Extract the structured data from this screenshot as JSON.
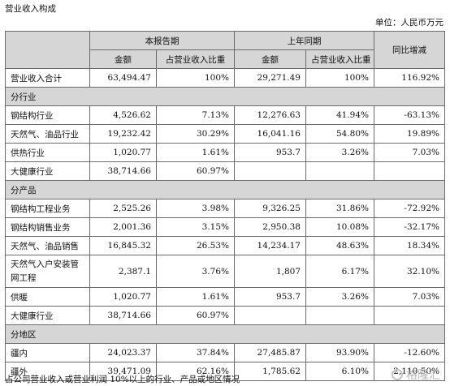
{
  "title": "营业收入构成",
  "unit": "单位：人民币万元",
  "headers": {
    "current_period": "本报告期",
    "prior_period": "上年同期",
    "yoy": "同比增减",
    "amount": "金额",
    "share": "占营业收入比重"
  },
  "total": {
    "label": "营业收入合计",
    "cur_amount": "63,494.47",
    "cur_share": "100%",
    "prev_amount": "29,271.49",
    "prev_share": "100%",
    "yoy": "116.92%"
  },
  "sections": [
    {
      "name": "分行业",
      "rows": [
        {
          "label": "钢结构行业",
          "cur_amount": "4,526.62",
          "cur_share": "7.13%",
          "prev_amount": "12,276.63",
          "prev_share": "41.94%",
          "yoy": "-63.13%"
        },
        {
          "label": "天然气、油品行业",
          "cur_amount": "19,232.42",
          "cur_share": "30.29%",
          "prev_amount": "16,041.16",
          "prev_share": "54.80%",
          "yoy": "19.89%"
        },
        {
          "label": "供热行业",
          "cur_amount": "1,020.77",
          "cur_share": "1.61%",
          "prev_amount": "953.7",
          "prev_share": "3.26%",
          "yoy": "7.03%"
        },
        {
          "label": "大健康行业",
          "cur_amount": "38,714.66",
          "cur_share": "60.97%",
          "prev_amount": "",
          "prev_share": "",
          "yoy": ""
        }
      ]
    },
    {
      "name": "分产品",
      "rows": [
        {
          "label": "钢结构工程业务",
          "cur_amount": "2,525.26",
          "cur_share": "3.98%",
          "prev_amount": "9,326.25",
          "prev_share": "31.86%",
          "yoy": "-72.92%"
        },
        {
          "label": "钢结构销售业务",
          "cur_amount": "2,001.36",
          "cur_share": "3.15%",
          "prev_amount": "2,950.38",
          "prev_share": "10.08%",
          "yoy": "-32.17%"
        },
        {
          "label": "天然气、油品销售",
          "cur_amount": "16,845.32",
          "cur_share": "26.53%",
          "prev_amount": "14,234.17",
          "prev_share": "48.63%",
          "yoy": "18.34%"
        },
        {
          "label": "天然气入户安装管网工程",
          "cur_amount": "2,387.1",
          "cur_share": "3.76%",
          "prev_amount": "1,807",
          "prev_share": "6.17%",
          "yoy": "32.10%"
        },
        {
          "label": "供暖",
          "cur_amount": "1,020.77",
          "cur_share": "1.61%",
          "prev_amount": "953.7",
          "prev_share": "3.26%",
          "yoy": "7.03%"
        },
        {
          "label": "大健康行业",
          "cur_amount": "38,714.66",
          "cur_share": "60.97%",
          "prev_amount": "",
          "prev_share": "",
          "yoy": ""
        }
      ]
    },
    {
      "name": "分地区",
      "rows": [
        {
          "label": "疆内",
          "cur_amount": "24,023.37",
          "cur_share": "37.84%",
          "prev_amount": "27,485.87",
          "prev_share": "93.90%",
          "yoy": "-12.60%"
        },
        {
          "label": "疆外",
          "cur_amount": "39,471.09",
          "cur_share": "62.16%",
          "prev_amount": "1,785.62",
          "prev_share": "6.10%",
          "yoy": "2,110.50%"
        }
      ]
    }
  ],
  "footnote": "占公司营业收入或营业利润 10%以上的行业、产品或地区情况",
  "watermark": "格隆汇"
}
